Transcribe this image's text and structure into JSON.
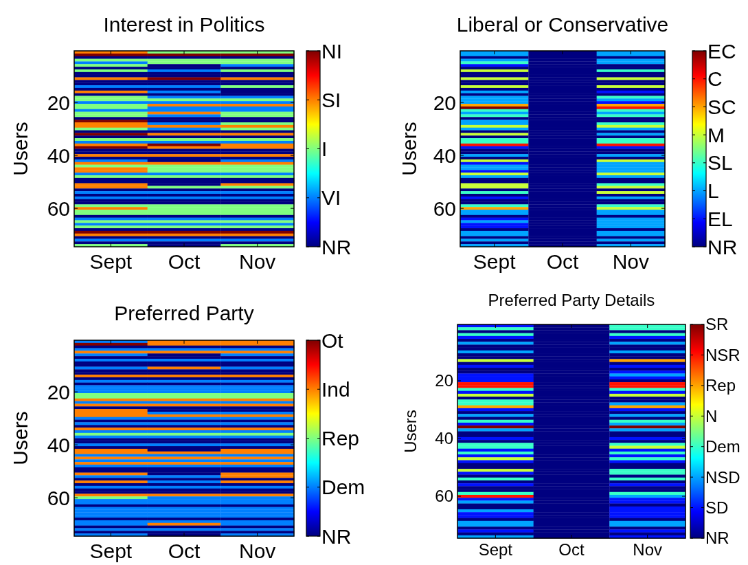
{
  "chart_data": [
    {
      "type": "heatmap",
      "title": "Interest in Politics",
      "ylabel": "Users",
      "categories": [
        "Sept",
        "Oct",
        "Nov"
      ],
      "ylim": [
        74.5,
        0.5
      ],
      "yticks": [
        20,
        40,
        60
      ],
      "clim": [
        0,
        4
      ],
      "cticks": [
        {
          "value": 0,
          "label": "NR"
        },
        {
          "value": 1,
          "label": "VI"
        },
        {
          "value": 2,
          "label": "I"
        },
        {
          "value": 3,
          "label": "SI"
        },
        {
          "value": 4,
          "label": "NI"
        }
      ],
      "cells": [
        [
          3,
          2,
          2
        ],
        [
          4,
          4,
          4
        ],
        [
          0,
          0,
          0
        ],
        [
          2,
          2,
          2
        ],
        [
          1,
          2,
          2
        ],
        [
          2,
          0,
          1
        ],
        [
          0,
          0,
          0
        ],
        [
          2,
          1,
          2
        ],
        [
          0,
          0,
          0
        ],
        [
          0,
          0,
          0
        ],
        [
          3,
          4,
          3
        ],
        [
          0,
          0,
          0
        ],
        [
          0,
          0,
          0
        ],
        [
          1,
          1,
          2
        ],
        [
          0,
          0,
          0
        ],
        [
          3,
          1,
          0
        ],
        [
          0,
          0,
          0
        ],
        [
          2,
          1,
          1
        ],
        [
          2,
          2,
          2
        ],
        [
          1,
          1,
          1
        ],
        [
          2,
          3,
          3
        ],
        [
          2,
          1,
          1
        ],
        [
          1,
          1,
          1
        ],
        [
          2,
          3,
          2
        ],
        [
          2,
          1,
          2
        ],
        [
          0,
          0,
          0
        ],
        [
          4,
          0,
          0
        ],
        [
          3,
          1,
          2
        ],
        [
          3,
          3,
          3
        ],
        [
          2,
          1,
          2
        ],
        [
          0,
          0,
          0
        ],
        [
          4,
          3,
          3
        ],
        [
          0,
          0,
          0
        ],
        [
          2,
          2,
          2
        ],
        [
          1,
          1,
          1
        ],
        [
          3,
          4,
          3
        ],
        [
          4,
          3,
          3
        ],
        [
          0,
          0,
          0
        ],
        [
          0,
          0,
          0
        ],
        [
          3,
          3,
          3
        ],
        [
          0,
          0,
          0
        ],
        [
          1,
          0,
          1
        ],
        [
          3,
          3,
          3
        ],
        [
          2,
          2,
          2
        ],
        [
          3,
          2,
          2
        ],
        [
          3,
          2,
          2
        ],
        [
          1,
          1,
          1
        ],
        [
          2,
          2,
          2
        ],
        [
          0,
          0,
          0
        ],
        [
          0,
          0,
          0
        ],
        [
          3,
          0,
          3
        ],
        [
          3,
          2,
          2
        ],
        [
          0,
          0,
          0
        ],
        [
          1,
          1,
          1
        ],
        [
          0,
          0,
          0
        ],
        [
          1,
          1,
          1
        ],
        [
          0,
          0,
          0
        ],
        [
          0,
          0,
          0
        ],
        [
          2,
          2,
          2
        ],
        [
          3,
          2,
          2
        ],
        [
          2,
          2,
          2
        ],
        [
          2,
          2,
          2
        ],
        [
          0,
          0,
          0
        ],
        [
          1,
          1,
          1
        ],
        [
          2,
          2,
          2
        ],
        [
          1,
          1,
          1
        ],
        [
          2,
          2,
          2
        ],
        [
          0,
          0,
          0
        ],
        [
          4,
          4,
          4
        ],
        [
          3,
          3,
          3
        ],
        [
          0,
          0,
          0
        ],
        [
          1,
          1,
          1
        ],
        [
          0,
          0,
          0
        ],
        [
          2,
          0,
          2
        ]
      ]
    },
    {
      "type": "heatmap",
      "title": "Liberal or Conservative",
      "ylabel": "Users",
      "categories": [
        "Sept",
        "Oct",
        "Nov"
      ],
      "ylim": [
        74.5,
        0.5
      ],
      "yticks": [
        20,
        40,
        60
      ],
      "clim": [
        0,
        7
      ],
      "cticks": [
        {
          "value": 0,
          "label": "NR"
        },
        {
          "value": 1,
          "label": "EL"
        },
        {
          "value": 2,
          "label": "L"
        },
        {
          "value": 3,
          "label": "SL"
        },
        {
          "value": 4,
          "label": "M"
        },
        {
          "value": 5,
          "label": "SC"
        },
        {
          "value": 6,
          "label": "C"
        },
        {
          "value": 7,
          "label": "EC"
        }
      ],
      "cells": [
        [
          2,
          0,
          2
        ],
        [
          2,
          0,
          2
        ],
        [
          0,
          0,
          0
        ],
        [
          2,
          0,
          2
        ],
        [
          3,
          0,
          2
        ],
        [
          1,
          0,
          0
        ],
        [
          0,
          0,
          0
        ],
        [
          4,
          0,
          3
        ],
        [
          0,
          0,
          0
        ],
        [
          0,
          0,
          0
        ],
        [
          4,
          0,
          4
        ],
        [
          0,
          0,
          0
        ],
        [
          0,
          0,
          0
        ],
        [
          4,
          0,
          4
        ],
        [
          0,
          0,
          0
        ],
        [
          2,
          0,
          1
        ],
        [
          0,
          0,
          0
        ],
        [
          2,
          0,
          3
        ],
        [
          2,
          0,
          2
        ],
        [
          2,
          0,
          1
        ],
        [
          5,
          0,
          5
        ],
        [
          7,
          0,
          6
        ],
        [
          3,
          0,
          3
        ],
        [
          2,
          0,
          2
        ],
        [
          3,
          0,
          3
        ],
        [
          0,
          0,
          0
        ],
        [
          2,
          0,
          0
        ],
        [
          2,
          0,
          3
        ],
        [
          4,
          0,
          4
        ],
        [
          2,
          0,
          2
        ],
        [
          0,
          0,
          0
        ],
        [
          4,
          0,
          2
        ],
        [
          0,
          0,
          0
        ],
        [
          3,
          0,
          3
        ],
        [
          3,
          0,
          3
        ],
        [
          6,
          0,
          6
        ],
        [
          1,
          0,
          1
        ],
        [
          0,
          0,
          0
        ],
        [
          0,
          0,
          0
        ],
        [
          2,
          0,
          2
        ],
        [
          0,
          0,
          0
        ],
        [
          4,
          0,
          4
        ],
        [
          1,
          0,
          2
        ],
        [
          2,
          0,
          2
        ],
        [
          2,
          0,
          2
        ],
        [
          1,
          0,
          2
        ],
        [
          4,
          0,
          4
        ],
        [
          2,
          0,
          2
        ],
        [
          0,
          0,
          0
        ],
        [
          0,
          0,
          0
        ],
        [
          4,
          0,
          3
        ],
        [
          4,
          0,
          4
        ],
        [
          0,
          0,
          0
        ],
        [
          3,
          0,
          4
        ],
        [
          0,
          0,
          0
        ],
        [
          1,
          0,
          2
        ],
        [
          0,
          0,
          0
        ],
        [
          0,
          0,
          0
        ],
        [
          3,
          0,
          3
        ],
        [
          5,
          0,
          4
        ],
        [
          2,
          0,
          2
        ],
        [
          2,
          0,
          2
        ],
        [
          0,
          0,
          0
        ],
        [
          1,
          0,
          2
        ],
        [
          2,
          0,
          2
        ],
        [
          1,
          0,
          2
        ],
        [
          1,
          0,
          2
        ],
        [
          0,
          0,
          0
        ],
        [
          2,
          0,
          2
        ],
        [
          2,
          0,
          2
        ],
        [
          0,
          0,
          0
        ],
        [
          2,
          0,
          2
        ],
        [
          0,
          0,
          0
        ],
        [
          2,
          0,
          2
        ]
      ]
    },
    {
      "type": "heatmap",
      "title": "Preferred Party",
      "ylabel": "Users",
      "categories": [
        "Sept",
        "Oct",
        "Nov"
      ],
      "ylim": [
        74.5,
        0.5
      ],
      "yticks": [
        20,
        40,
        60
      ],
      "clim": [
        0,
        4
      ],
      "cticks": [
        {
          "value": 0,
          "label": "NR"
        },
        {
          "value": 1,
          "label": "Dem"
        },
        {
          "value": 2,
          "label": "Rep"
        },
        {
          "value": 3,
          "label": "Ind"
        },
        {
          "value": 4,
          "label": "Ot"
        }
      ],
      "cells": [
        [
          1,
          3,
          3
        ],
        [
          4,
          3,
          3
        ],
        [
          0,
          0,
          0
        ],
        [
          1,
          1,
          1
        ],
        [
          3,
          3,
          3
        ],
        [
          1,
          0,
          1
        ],
        [
          0,
          0,
          0
        ],
        [
          1,
          1,
          1
        ],
        [
          0,
          0,
          0
        ],
        [
          0,
          0,
          0
        ],
        [
          1,
          3,
          1
        ],
        [
          0,
          0,
          0
        ],
        [
          0,
          0,
          0
        ],
        [
          3,
          3,
          3
        ],
        [
          0,
          0,
          0
        ],
        [
          1,
          1,
          1
        ],
        [
          0,
          0,
          0
        ],
        [
          1,
          1,
          1
        ],
        [
          1,
          1,
          1
        ],
        [
          1,
          1,
          1
        ],
        [
          2,
          2,
          2
        ],
        [
          2,
          2,
          2
        ],
        [
          3,
          3,
          3
        ],
        [
          1,
          1,
          1
        ],
        [
          3,
          3,
          3
        ],
        [
          0,
          0,
          0
        ],
        [
          3,
          0,
          0
        ],
        [
          3,
          1,
          1
        ],
        [
          3,
          3,
          3
        ],
        [
          1,
          1,
          1
        ],
        [
          0,
          0,
          0
        ],
        [
          1,
          1,
          1
        ],
        [
          0,
          0,
          0
        ],
        [
          3,
          3,
          3
        ],
        [
          1,
          1,
          1
        ],
        [
          2,
          2,
          2
        ],
        [
          1,
          1,
          1
        ],
        [
          0,
          0,
          0
        ],
        [
          0,
          0,
          0
        ],
        [
          1,
          1,
          1
        ],
        [
          0,
          0,
          0
        ],
        [
          3,
          0,
          3
        ],
        [
          3,
          3,
          3
        ],
        [
          1,
          1,
          1
        ],
        [
          3,
          3,
          3
        ],
        [
          1,
          1,
          1
        ],
        [
          3,
          3,
          3
        ],
        [
          1,
          1,
          1
        ],
        [
          0,
          0,
          0
        ],
        [
          0,
          0,
          0
        ],
        [
          3,
          0,
          3
        ],
        [
          1,
          1,
          3
        ],
        [
          0,
          0,
          0
        ],
        [
          3,
          1,
          3
        ],
        [
          0,
          0,
          0
        ],
        [
          1,
          1,
          1
        ],
        [
          0,
          0,
          0
        ],
        [
          0,
          0,
          0
        ],
        [
          3,
          3,
          3
        ],
        [
          2,
          1,
          1
        ],
        [
          1,
          1,
          1
        ],
        [
          1,
          1,
          1
        ],
        [
          0,
          0,
          0
        ],
        [
          1,
          1,
          1
        ],
        [
          1,
          1,
          1
        ],
        [
          1,
          1,
          1
        ],
        [
          1,
          1,
          1
        ],
        [
          0,
          0,
          0
        ],
        [
          1,
          1,
          1
        ],
        [
          1,
          3,
          1
        ],
        [
          0,
          0,
          0
        ],
        [
          1,
          1,
          1
        ],
        [
          0,
          0,
          0
        ],
        [
          1,
          0,
          1
        ]
      ]
    },
    {
      "type": "heatmap",
      "title": "Preferred Party Details",
      "ylabel": "Users",
      "categories": [
        "Sept",
        "Oct",
        "Nov"
      ],
      "ylim": [
        74.5,
        0.5
      ],
      "yticks": [
        20,
        40,
        60
      ],
      "clim": [
        0,
        7
      ],
      "cticks": [
        {
          "value": 0,
          "label": "NR"
        },
        {
          "value": 1,
          "label": "SD"
        },
        {
          "value": 2,
          "label": "NSD"
        },
        {
          "value": 3,
          "label": "Dem"
        },
        {
          "value": 4,
          "label": "N"
        },
        {
          "value": 5,
          "label": "Rep"
        },
        {
          "value": 6,
          "label": "NSR"
        },
        {
          "value": 7,
          "label": "SR"
        }
      ],
      "cells": [
        [
          1,
          0,
          3
        ],
        [
          3,
          0,
          3
        ],
        [
          0,
          0,
          0
        ],
        [
          3,
          0,
          3
        ],
        [
          1,
          0,
          1
        ],
        [
          0,
          0,
          0
        ],
        [
          2,
          0,
          2
        ],
        [
          0,
          0,
          0
        ],
        [
          0,
          0,
          0
        ],
        [
          2,
          0,
          2
        ],
        [
          0,
          0,
          0
        ],
        [
          0,
          0,
          0
        ],
        [
          4,
          0,
          5
        ],
        [
          0,
          0,
          0
        ],
        [
          1,
          0,
          1
        ],
        [
          0,
          0,
          0
        ],
        [
          0,
          0,
          1
        ],
        [
          1,
          0,
          2
        ],
        [
          1,
          0,
          1
        ],
        [
          1,
          0,
          0
        ],
        [
          6,
          0,
          6
        ],
        [
          6,
          0,
          6
        ],
        [
          3,
          0,
          3
        ],
        [
          1,
          0,
          1
        ],
        [
          4,
          0,
          4
        ],
        [
          0,
          0,
          0
        ],
        [
          3,
          0,
          0
        ],
        [
          3,
          0,
          2
        ],
        [
          5,
          0,
          5
        ],
        [
          1,
          0,
          1
        ],
        [
          0,
          0,
          0
        ],
        [
          2,
          0,
          2
        ],
        [
          0,
          0,
          0
        ],
        [
          3,
          0,
          3
        ],
        [
          1,
          0,
          2
        ],
        [
          7,
          0,
          7
        ],
        [
          2,
          0,
          2
        ],
        [
          0,
          0,
          0
        ],
        [
          0,
          0,
          0
        ],
        [
          1,
          0,
          1
        ],
        [
          0,
          0,
          0
        ],
        [
          3,
          0,
          3
        ],
        [
          3,
          0,
          4
        ],
        [
          1,
          0,
          1
        ],
        [
          3,
          0,
          3
        ],
        [
          1,
          0,
          1
        ],
        [
          4,
          0,
          3
        ],
        [
          1,
          0,
          1
        ],
        [
          0,
          0,
          0
        ],
        [
          0,
          0,
          0
        ],
        [
          4,
          0,
          3
        ],
        [
          1,
          0,
          3
        ],
        [
          0,
          0,
          0
        ],
        [
          3,
          0,
          3
        ],
        [
          0,
          0,
          0
        ],
        [
          1,
          0,
          1
        ],
        [
          0,
          0,
          0
        ],
        [
          0,
          0,
          0
        ],
        [
          3,
          0,
          3
        ],
        [
          6,
          0,
          2
        ],
        [
          1,
          0,
          1
        ],
        [
          2,
          0,
          1
        ],
        [
          0,
          0,
          0
        ],
        [
          0,
          0,
          1
        ],
        [
          2,
          0,
          1
        ],
        [
          1,
          0,
          1
        ],
        [
          1,
          0,
          1
        ],
        [
          0,
          0,
          0
        ],
        [
          2,
          0,
          2
        ],
        [
          2,
          0,
          2
        ],
        [
          0,
          0,
          0
        ],
        [
          1,
          0,
          1
        ],
        [
          0,
          0,
          0
        ],
        [
          2,
          0,
          1
        ]
      ]
    }
  ]
}
